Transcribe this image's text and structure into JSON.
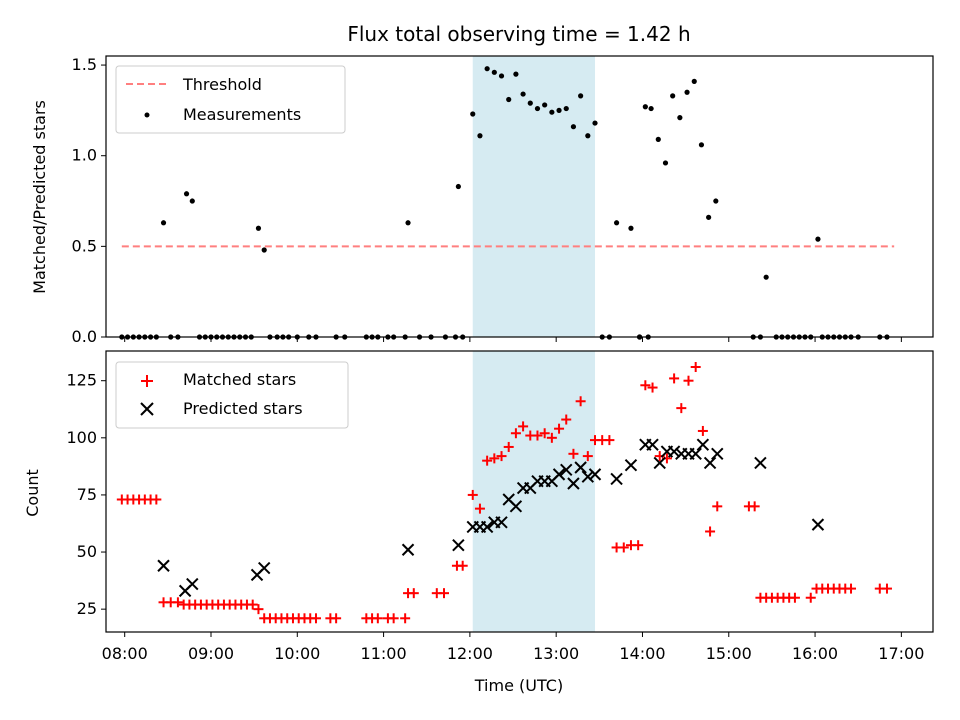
{
  "colors": {
    "threshold": "#ff7f7f",
    "measurement": "#000000",
    "matched": "#ff0000",
    "predicted": "#000000",
    "band": "#add8e6"
  },
  "chart_data": {
    "title": "Flux total observing time = 1.42 h",
    "xlabel": "Time (UTC)",
    "x_ticks": [
      "08:00",
      "09:00",
      "10:00",
      "11:00",
      "12:00",
      "13:00",
      "14:00",
      "15:00",
      "16:00",
      "17:00"
    ],
    "xlim": [
      "07:47",
      "17:22"
    ],
    "highlight_band": [
      "12:02",
      "13:27"
    ],
    "panels": [
      {
        "type": "scatter",
        "ylabel": "Matched/Predicted stars",
        "ylim": [
          0,
          1.55
        ],
        "y_ticks": [
          "0.0",
          "0.5",
          "1.0",
          "1.5"
        ],
        "legend": {
          "placement": "top-left",
          "entries": [
            "Threshold",
            "Measurements"
          ]
        },
        "threshold": {
          "name": "Threshold",
          "value": 0.5,
          "x_range": [
            "07:58",
            "16:55"
          ]
        },
        "measurements": {
          "name": "Measurements",
          "points": [
            [
              "07:58",
              0
            ],
            [
              "08:02",
              0
            ],
            [
              "08:06",
              0
            ],
            [
              "08:10",
              0
            ],
            [
              "08:14",
              0
            ],
            [
              "08:18",
              0
            ],
            [
              "08:22",
              0
            ],
            [
              "08:27",
              0.63
            ],
            [
              "08:32",
              0
            ],
            [
              "08:37",
              0
            ],
            [
              "08:43",
              0.79
            ],
            [
              "08:47",
              0.75
            ],
            [
              "08:52",
              0
            ],
            [
              "08:56",
              0
            ],
            [
              "09:00",
              0
            ],
            [
              "09:04",
              0
            ],
            [
              "09:08",
              0
            ],
            [
              "09:12",
              0
            ],
            [
              "09:16",
              0
            ],
            [
              "09:20",
              0
            ],
            [
              "09:24",
              0
            ],
            [
              "09:28",
              0
            ],
            [
              "09:33",
              0.6
            ],
            [
              "09:37",
              0.48
            ],
            [
              "09:41",
              0
            ],
            [
              "09:46",
              0
            ],
            [
              "09:50",
              0
            ],
            [
              "09:54",
              0
            ],
            [
              "10:00",
              0
            ],
            [
              "10:08",
              0
            ],
            [
              "10:13",
              0
            ],
            [
              "10:27",
              0
            ],
            [
              "10:33",
              0
            ],
            [
              "10:48",
              0
            ],
            [
              "10:52",
              0
            ],
            [
              "10:56",
              0
            ],
            [
              "11:03",
              0
            ],
            [
              "11:07",
              0
            ],
            [
              "11:15",
              0
            ],
            [
              "11:17",
              0.63
            ],
            [
              "11:25",
              0
            ],
            [
              "11:33",
              0
            ],
            [
              "11:43",
              0
            ],
            [
              "11:50",
              0
            ],
            [
              "11:55",
              0
            ],
            [
              "11:52",
              0.83
            ],
            [
              "12:02",
              1.23
            ],
            [
              "12:07",
              1.11
            ],
            [
              "12:12",
              1.48
            ],
            [
              "12:17",
              1.46
            ],
            [
              "12:22",
              1.44
            ],
            [
              "12:27",
              1.31
            ],
            [
              "12:32",
              1.45
            ],
            [
              "12:37",
              1.34
            ],
            [
              "12:42",
              1.29
            ],
            [
              "12:47",
              1.26
            ],
            [
              "12:52",
              1.28
            ],
            [
              "12:57",
              1.24
            ],
            [
              "13:02",
              1.25
            ],
            [
              "13:07",
              1.26
            ],
            [
              "13:12",
              1.16
            ],
            [
              "13:17",
              1.33
            ],
            [
              "13:22",
              1.11
            ],
            [
              "13:27",
              1.18
            ],
            [
              "13:32",
              0
            ],
            [
              "13:37",
              0
            ],
            [
              "13:42",
              0.63
            ],
            [
              "13:52",
              0.6
            ],
            [
              "13:58",
              0
            ],
            [
              "14:04",
              0
            ],
            [
              "13:58",
              0
            ],
            [
              "14:02",
              1.27
            ],
            [
              "14:06",
              1.26
            ],
            [
              "14:11",
              1.09
            ],
            [
              "14:16",
              0.96
            ],
            [
              "14:21",
              1.33
            ],
            [
              "14:26",
              1.21
            ],
            [
              "14:31",
              1.35
            ],
            [
              "14:36",
              1.41
            ],
            [
              "14:41",
              1.06
            ],
            [
              "14:46",
              0.66
            ],
            [
              "14:51",
              0.75
            ],
            [
              "15:17",
              0
            ],
            [
              "15:22",
              0
            ],
            [
              "15:26",
              0.33
            ],
            [
              "15:33",
              0
            ],
            [
              "15:37",
              0
            ],
            [
              "15:41",
              0
            ],
            [
              "15:45",
              0
            ],
            [
              "15:49",
              0
            ],
            [
              "15:53",
              0
            ],
            [
              "15:57",
              0
            ],
            [
              "16:02",
              0.54
            ],
            [
              "16:05",
              0
            ],
            [
              "16:09",
              0
            ],
            [
              "16:13",
              0
            ],
            [
              "16:17",
              0
            ],
            [
              "16:21",
              0
            ],
            [
              "16:25",
              0
            ],
            [
              "16:30",
              0
            ],
            [
              "16:45",
              0
            ],
            [
              "16:50",
              0
            ]
          ]
        }
      },
      {
        "type": "scatter",
        "ylabel": "Count",
        "ylim": [
          15,
          138
        ],
        "y_ticks": [
          "25",
          "50",
          "75",
          "100",
          "125"
        ],
        "legend": {
          "placement": "top-left",
          "entries": [
            "Matched stars",
            "Predicted stars"
          ]
        },
        "series": [
          {
            "name": "Matched stars",
            "marker": "plus",
            "points": [
              [
                "07:58",
                73
              ],
              [
                "08:02",
                73
              ],
              [
                "08:06",
                73
              ],
              [
                "08:10",
                73
              ],
              [
                "08:14",
                73
              ],
              [
                "08:18",
                73
              ],
              [
                "08:22",
                73
              ],
              [
                "08:27",
                28
              ],
              [
                "08:32",
                28
              ],
              [
                "08:37",
                28
              ],
              [
                "08:41",
                27
              ],
              [
                "08:45",
                27
              ],
              [
                "08:49",
                27
              ],
              [
                "08:53",
                27
              ],
              [
                "08:57",
                27
              ],
              [
                "09:01",
                27
              ],
              [
                "09:05",
                27
              ],
              [
                "09:09",
                27
              ],
              [
                "09:13",
                27
              ],
              [
                "09:17",
                27
              ],
              [
                "09:21",
                27
              ],
              [
                "09:25",
                27
              ],
              [
                "09:29",
                27
              ],
              [
                "09:33",
                25
              ],
              [
                "09:37",
                21
              ],
              [
                "09:41",
                21
              ],
              [
                "09:45",
                21
              ],
              [
                "09:49",
                21
              ],
              [
                "09:53",
                21
              ],
              [
                "09:57",
                21
              ],
              [
                "10:01",
                21
              ],
              [
                "10:05",
                21
              ],
              [
                "10:09",
                21
              ],
              [
                "10:13",
                21
              ],
              [
                "10:23",
                21
              ],
              [
                "10:27",
                21
              ],
              [
                "10:48",
                21
              ],
              [
                "10:52",
                21
              ],
              [
                "10:56",
                21
              ],
              [
                "11:03",
                21
              ],
              [
                "11:07",
                21
              ],
              [
                "11:15",
                21
              ],
              [
                "11:17",
                32
              ],
              [
                "11:21",
                32
              ],
              [
                "11:37",
                32
              ],
              [
                "11:42",
                32
              ],
              [
                "11:51",
                44
              ],
              [
                "11:55",
                44
              ],
              [
                "12:02",
                75
              ],
              [
                "12:07",
                69
              ],
              [
                "12:12",
                90
              ],
              [
                "12:17",
                91
              ],
              [
                "12:22",
                92
              ],
              [
                "12:27",
                96
              ],
              [
                "12:32",
                102
              ],
              [
                "12:37",
                105
              ],
              [
                "12:42",
                101
              ],
              [
                "12:47",
                101
              ],
              [
                "12:52",
                102
              ],
              [
                "12:57",
                100
              ],
              [
                "13:02",
                104
              ],
              [
                "13:07",
                108
              ],
              [
                "13:12",
                93
              ],
              [
                "13:17",
                116
              ],
              [
                "13:22",
                92
              ],
              [
                "13:27",
                99
              ],
              [
                "13:32",
                99
              ],
              [
                "13:37",
                99
              ],
              [
                "13:42",
                52
              ],
              [
                "13:47",
                52
              ],
              [
                "13:52",
                53
              ],
              [
                "13:57",
                53
              ],
              [
                "14:02",
                123
              ],
              [
                "14:07",
                122
              ],
              [
                "14:12",
                92
              ],
              [
                "14:17",
                91
              ],
              [
                "14:22",
                126
              ],
              [
                "14:27",
                113
              ],
              [
                "14:32",
                125
              ],
              [
                "14:37",
                131
              ],
              [
                "14:42",
                103
              ],
              [
                "14:47",
                59
              ],
              [
                "14:52",
                70
              ],
              [
                "15:14",
                70
              ],
              [
                "15:18",
                70
              ],
              [
                "15:22",
                30
              ],
              [
                "15:26",
                30
              ],
              [
                "15:30",
                30
              ],
              [
                "15:34",
                30
              ],
              [
                "15:38",
                30
              ],
              [
                "15:42",
                30
              ],
              [
                "15:46",
                30
              ],
              [
                "15:57",
                30
              ],
              [
                "16:01",
                34
              ],
              [
                "16:05",
                34
              ],
              [
                "16:09",
                34
              ],
              [
                "16:13",
                34
              ],
              [
                "16:17",
                34
              ],
              [
                "16:21",
                34
              ],
              [
                "16:25",
                34
              ],
              [
                "16:45",
                34
              ],
              [
                "16:50",
                34
              ]
            ]
          },
          {
            "name": "Predicted stars",
            "marker": "x",
            "points": [
              [
                "08:27",
                44
              ],
              [
                "08:42",
                33
              ],
              [
                "08:47",
                36
              ],
              [
                "09:32",
                40
              ],
              [
                "09:37",
                43
              ],
              [
                "11:17",
                51
              ],
              [
                "11:52",
                53
              ],
              [
                "12:02",
                61
              ],
              [
                "12:07",
                61
              ],
              [
                "12:12",
                61
              ],
              [
                "12:17",
                63
              ],
              [
                "12:22",
                63
              ],
              [
                "12:27",
                73
              ],
              [
                "12:32",
                70
              ],
              [
                "12:37",
                78
              ],
              [
                "12:42",
                78
              ],
              [
                "12:47",
                81
              ],
              [
                "12:52",
                81
              ],
              [
                "12:57",
                81
              ],
              [
                "13:02",
                84
              ],
              [
                "13:07",
                86
              ],
              [
                "13:12",
                80
              ],
              [
                "13:17",
                87
              ],
              [
                "13:22",
                83
              ],
              [
                "13:27",
                84
              ],
              [
                "13:42",
                82
              ],
              [
                "13:52",
                88
              ],
              [
                "14:02",
                97
              ],
              [
                "14:07",
                97
              ],
              [
                "14:12",
                89
              ],
              [
                "14:17",
                94
              ],
              [
                "14:22",
                94
              ],
              [
                "14:27",
                93
              ],
              [
                "14:32",
                93
              ],
              [
                "14:37",
                93
              ],
              [
                "14:42",
                97
              ],
              [
                "14:47",
                89
              ],
              [
                "14:52",
                93
              ],
              [
                "15:22",
                89
              ],
              [
                "16:02",
                62
              ]
            ]
          }
        ]
      }
    ]
  }
}
